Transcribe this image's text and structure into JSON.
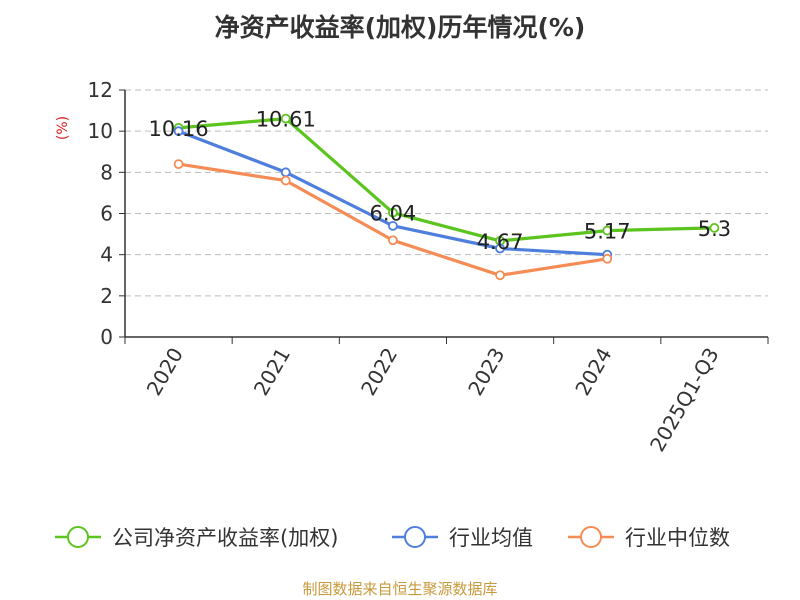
{
  "chart_data": {
    "type": "line",
    "title": "净资产收益率(加权)历年情况(%)",
    "ylabel": "(%)",
    "xlabel": "",
    "categories": [
      "2020",
      "2021",
      "2022",
      "2023",
      "2024",
      "2025Q1-Q3"
    ],
    "ylim": [
      0,
      12
    ],
    "yticks": [
      0,
      2,
      4,
      6,
      8,
      10,
      12
    ],
    "grid": true,
    "legend_position": "bottom",
    "series": [
      {
        "name": "公司净资产收益率(加权)",
        "color": "#5cc41e",
        "values": [
          10.16,
          10.61,
          6.04,
          4.67,
          5.17,
          5.3
        ],
        "labels": [
          "10.16",
          "10.61",
          "6.04",
          "4.67",
          "5.17",
          "5.3"
        ]
      },
      {
        "name": "行业均值",
        "color": "#4f7fdc",
        "values": [
          10.0,
          8.0,
          5.4,
          4.3,
          4.0,
          null
        ]
      },
      {
        "name": "行业中位数",
        "color": "#f58c55",
        "values": [
          8.4,
          7.6,
          4.7,
          3.0,
          3.8,
          null
        ]
      }
    ],
    "source": "制图数据来自恒生聚源数据库"
  }
}
